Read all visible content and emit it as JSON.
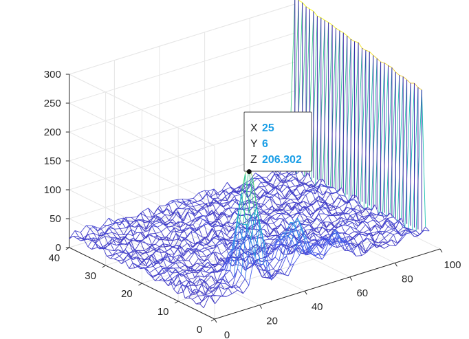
{
  "chart_data": {
    "type": "mesh3d",
    "title": "",
    "xlabel": "",
    "ylabel": "",
    "zlabel": "",
    "xlim": [
      0,
      100
    ],
    "ylim": [
      0,
      40
    ],
    "zlim": [
      0,
      300
    ],
    "x_ticks": [
      0,
      20,
      40,
      60,
      80,
      100
    ],
    "y_ticks": [
      0,
      10,
      20,
      30,
      40
    ],
    "z_ticks": [
      0,
      50,
      100,
      150,
      200,
      250,
      300
    ],
    "x_tick_labels": [
      "0",
      "20",
      "40",
      "60",
      "80",
      "100"
    ],
    "y_tick_labels": [
      "0",
      "10",
      "20",
      "30",
      "40"
    ],
    "z_tick_labels": [
      "0",
      "50",
      "100",
      "150",
      "200",
      "250",
      "300"
    ],
    "grid": true,
    "box": true,
    "colormap": "parula",
    "surface_description": {
      "baseline_noise": [
        10,
        30
      ],
      "peak": {
        "x": 25,
        "y": 6,
        "z": 206.302
      },
      "secondary_bump": {
        "x": 45,
        "y": 6,
        "z": 90
      },
      "wall": {
        "x": 100,
        "y_range": [
          5,
          40
        ],
        "z_range": [
          260,
          310
        ]
      }
    },
    "datatip": {
      "x_label": "X",
      "x_value": "25",
      "y_label": "Y",
      "y_value": "6",
      "z_label": "Z",
      "z_value": "206.302"
    }
  },
  "colors": {
    "axis": "#262626",
    "grid": "#e6e6e6",
    "low": "#3e26a8",
    "high": "#f9fb0e",
    "datatip_value": "#1a9ee6"
  }
}
